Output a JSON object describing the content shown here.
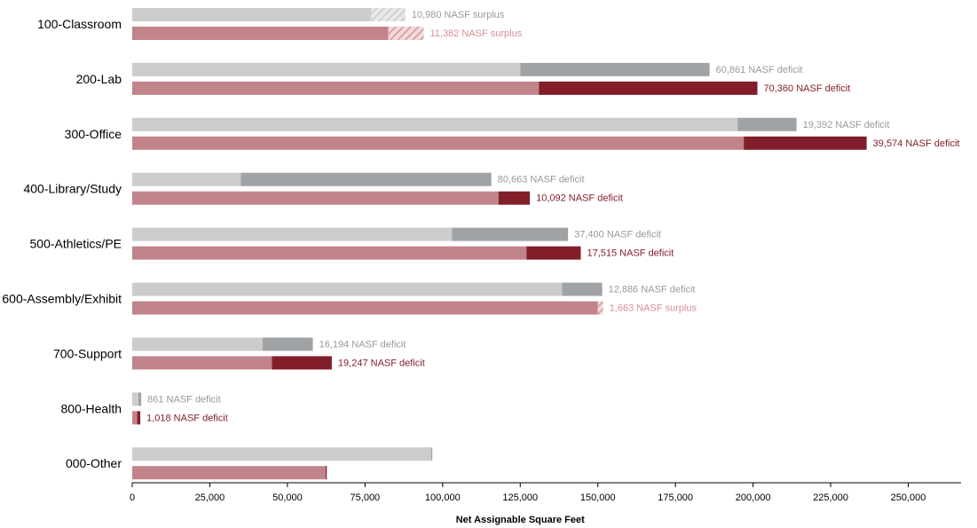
{
  "chart_data": {
    "type": "bar",
    "orientation": "horizontal",
    "xlabel": "Net Assignable Square Feet",
    "xlim": [
      0,
      267000
    ],
    "xticks": [
      0,
      25000,
      50000,
      75000,
      100000,
      125000,
      150000,
      175000,
      200000,
      225000,
      250000
    ],
    "xtick_labels": [
      "0",
      "25,000",
      "50,000",
      "75,000",
      "100,000",
      "125,000",
      "150,000",
      "175,000",
      "200,000",
      "225,000",
      "250,000"
    ],
    "categories": [
      "100-Classroom",
      "200-Lab",
      "300-Office",
      "400-Library/Study",
      "500-Athletics/PE",
      "600-Assembly/Exhibit",
      "700-Support",
      "800-Health",
      "000-Other"
    ],
    "series": [
      {
        "existing": [
          77000,
          125000,
          195000,
          35000,
          103000,
          138500,
          42000,
          2000,
          96500
        ],
        "total": [
          88000,
          186000,
          214000,
          115700,
          140400,
          151400,
          58200,
          2900,
          96500
        ],
        "status": [
          "surplus",
          "deficit",
          "deficit",
          "deficit",
          "deficit",
          "deficit",
          "deficit",
          "deficit",
          null
        ],
        "annotations": [
          "10,980 NASF surplus",
          "60,861 NASF deficit",
          "19,392 NASF deficit",
          "80,663 NASF deficit",
          "37,400 NASF deficit",
          "12,886 NASF deficit",
          "16,194 NASF deficit",
          "861 NASF deficit",
          ""
        ]
      },
      {
        "existing": [
          82500,
          131000,
          197000,
          118000,
          127000,
          150000,
          45000,
          1600,
          62500
        ],
        "total": [
          93900,
          201400,
          236600,
          128100,
          144500,
          151700,
          64300,
          2600,
          62500
        ],
        "status": [
          "surplus",
          "deficit",
          "deficit",
          "deficit",
          "deficit",
          "surplus",
          "deficit",
          "deficit",
          null
        ],
        "annotations": [
          "11,382 NASF surplus",
          "70,360 NASF deficit",
          "39,574 NASF deficit",
          "10,092 NASF deficit",
          "17,515 NASF deficit",
          "1,663 NASF surplus",
          "19,247 NASF deficit",
          "1,018 NASF deficit",
          ""
        ]
      }
    ],
    "grid": false
  },
  "colors": {
    "gray_base": "#cccccc",
    "gray_deficit": "#a0a3a6",
    "gray_text": "#999999",
    "red_base": "#c1848a",
    "red_deficit": "#821e2a",
    "red_surplus_text": "#d98d96",
    "axis": "#000000"
  }
}
